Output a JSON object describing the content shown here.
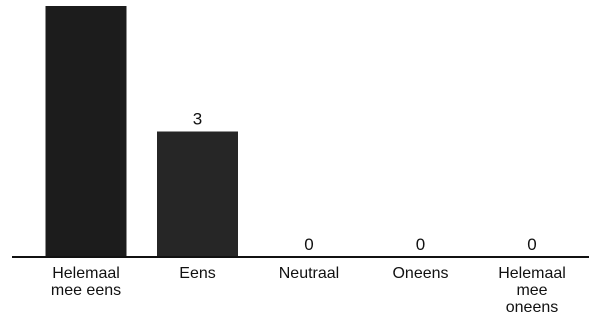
{
  "chart_data": {
    "type": "bar",
    "categories": [
      [
        "Helemaal",
        "mee eens"
      ],
      [
        "Eens"
      ],
      [
        "Neutraal"
      ],
      [
        "Oneens"
      ],
      [
        "Helemaal",
        "mee",
        "oneens"
      ]
    ],
    "values": [
      6,
      3,
      0,
      0,
      0
    ],
    "data_labels": [
      "",
      "3",
      "0",
      "0",
      "0"
    ],
    "title": "",
    "xlabel": "",
    "ylabel": "",
    "ylim": [
      0,
      6
    ],
    "grid": false,
    "legend": "none",
    "colors": {
      "bars": [
        "#1c1c1c",
        "#262626",
        "#262626",
        "#262626",
        "#262626"
      ],
      "axis": "#111111",
      "text": "#111111"
    }
  }
}
